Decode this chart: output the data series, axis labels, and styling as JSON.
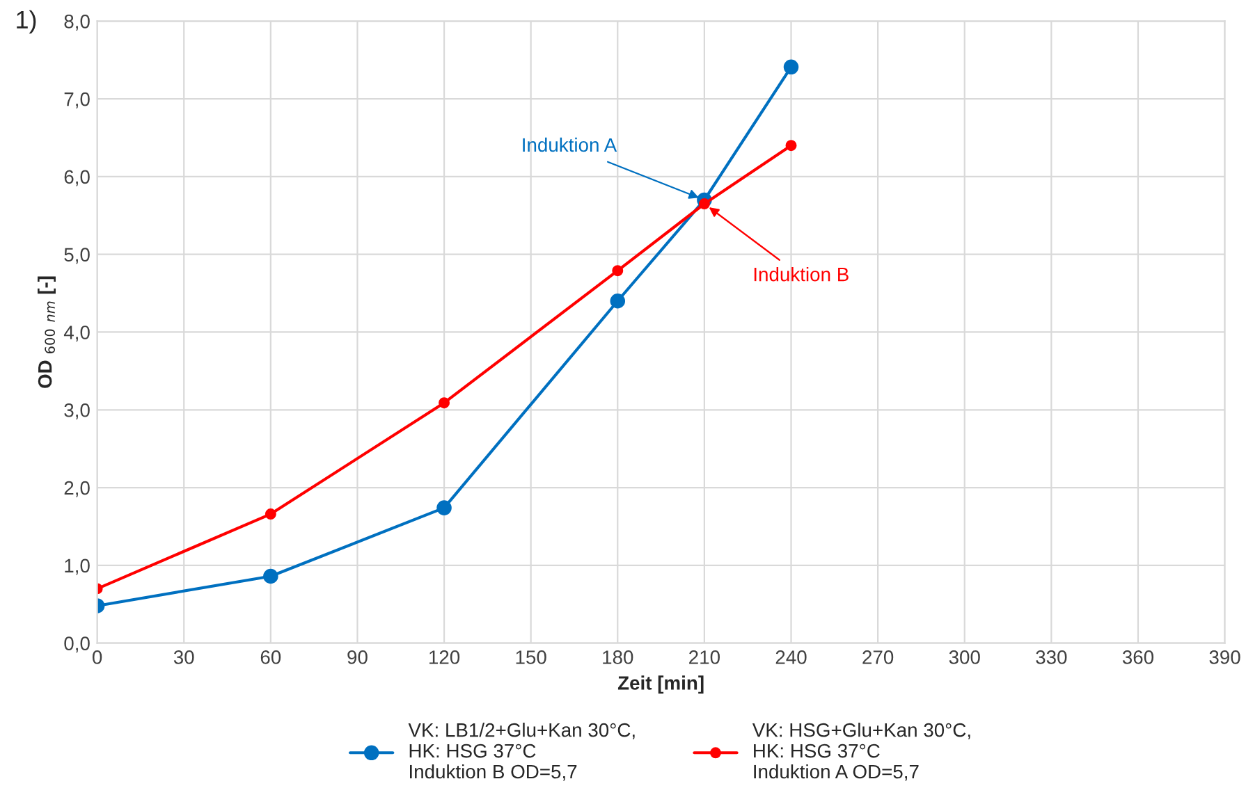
{
  "chart_data": {
    "type": "line",
    "xlabel": "Zeit [min]",
    "ylabel": "OD $_{600}$ $_{nm}$ [-]",
    "x": [
      0,
      60,
      120,
      180,
      210,
      240
    ],
    "series": [
      {
        "name": "VK: LB1/2+Glu+Kan 30°C,\nHK: HSG 37°C\nInduktion B OD=5,7",
        "color": "#0070c0",
        "values": [
          0.48,
          0.86,
          1.74,
          4.4,
          5.7,
          7.41
        ]
      },
      {
        "name": "VK: HSG+Glu+Kan 30°C,\nHK: HSG 37°C\nInduktion A OD=5,7",
        "color": "#ff0000",
        "values": [
          0.7,
          1.66,
          3.09,
          4.79,
          5.65,
          6.4
        ]
      }
    ],
    "xlim": [
      0,
      390
    ],
    "xticks": [
      0,
      30,
      60,
      90,
      120,
      150,
      180,
      210,
      240,
      270,
      300,
      330,
      360,
      390
    ],
    "ylim": [
      0,
      8
    ],
    "yticks": [
      {
        "value": 0,
        "label": "0,0"
      },
      {
        "value": 1,
        "label": "1,0"
      },
      {
        "value": 2,
        "label": "2,0"
      },
      {
        "value": 3,
        "label": "3,0"
      },
      {
        "value": 4,
        "label": "4,0"
      },
      {
        "value": 5,
        "label": "5,0"
      },
      {
        "value": 6,
        "label": "6,0"
      },
      {
        "value": 7,
        "label": "7,0"
      },
      {
        "value": 8,
        "label": "8,0"
      }
    ],
    "annotations": [
      "1)",
      {
        "text": "Induktion A",
        "x": 210,
        "y": 5.7
      },
      {
        "text": "Induktion B",
        "x": 210,
        "y": 5.65
      }
    ],
    "grid": true,
    "legend": "bottom",
    "marker": "circle",
    "line_style": "solid"
  }
}
